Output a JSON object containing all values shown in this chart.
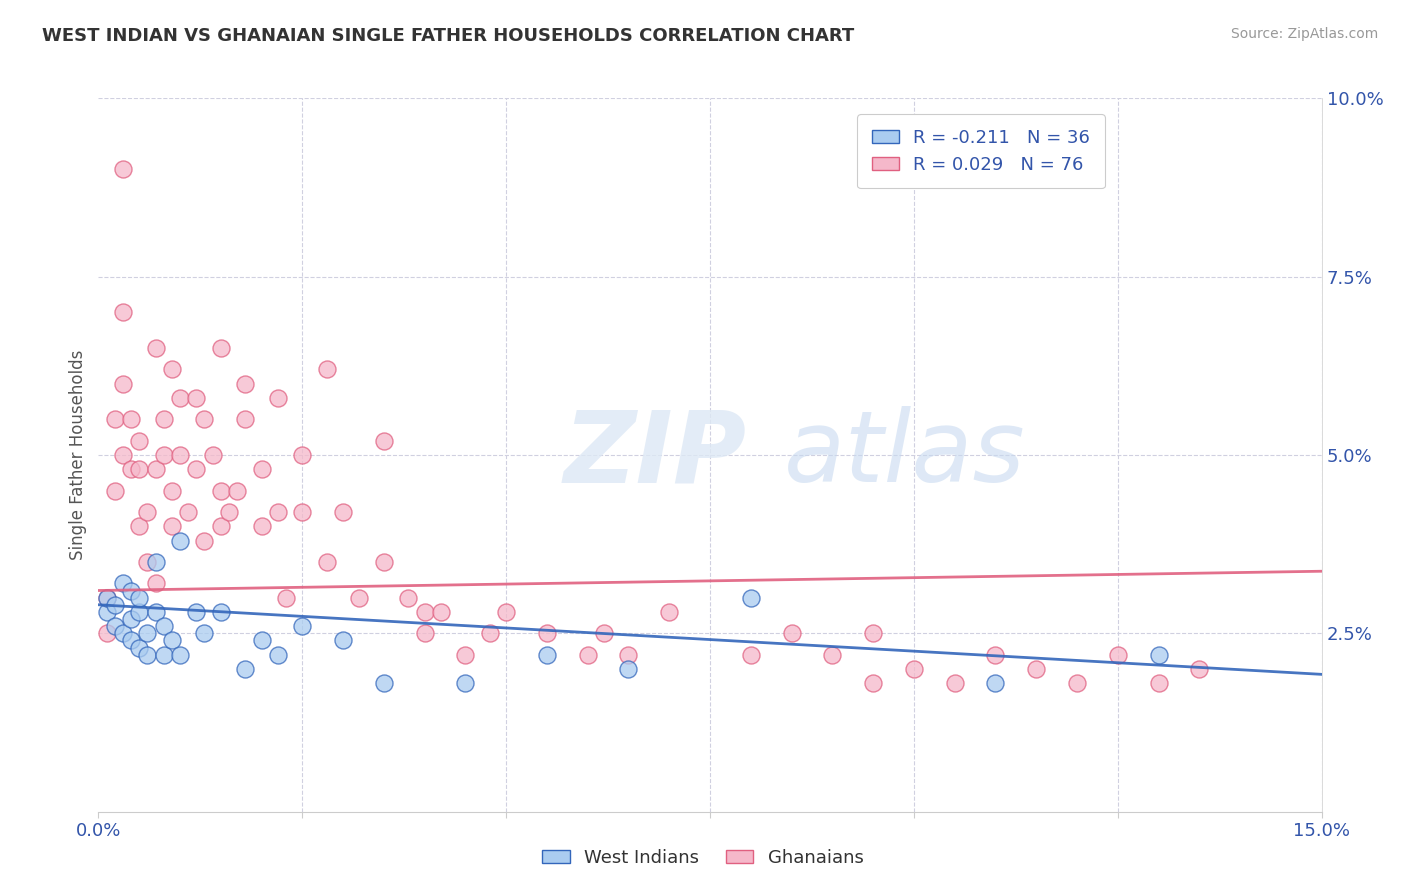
{
  "title": "WEST INDIAN VS GHANAIAN SINGLE FATHER HOUSEHOLDS CORRELATION CHART",
  "source": "Source: ZipAtlas.com",
  "ylabel": "Single Father Households",
  "legend_blue_label": "R = -0.211   N = 36",
  "legend_pink_label": "R = 0.029   N = 76",
  "blue_color": "#aaccf0",
  "pink_color": "#f5b8ca",
  "blue_line_color": "#3366BB",
  "pink_line_color": "#e06080",
  "background_color": "#ffffff",
  "grid_color": "#d0d0e0",
  "watermark_zip": "ZIP",
  "watermark_atlas": "atlas",
  "xlim": [
    0,
    0.15
  ],
  "ylim": [
    0,
    0.1
  ],
  "blue_intercept": 0.029,
  "blue_slope": -0.065,
  "pink_intercept": 0.031,
  "pink_slope": 0.018,
  "west_indians_x": [
    0.001,
    0.001,
    0.002,
    0.002,
    0.003,
    0.003,
    0.004,
    0.004,
    0.004,
    0.005,
    0.005,
    0.005,
    0.006,
    0.006,
    0.007,
    0.007,
    0.008,
    0.008,
    0.009,
    0.01,
    0.01,
    0.012,
    0.013,
    0.015,
    0.018,
    0.02,
    0.022,
    0.025,
    0.03,
    0.035,
    0.045,
    0.055,
    0.065,
    0.08,
    0.11,
    0.13
  ],
  "west_indians_y": [
    0.028,
    0.03,
    0.026,
    0.029,
    0.025,
    0.032,
    0.027,
    0.024,
    0.031,
    0.023,
    0.028,
    0.03,
    0.025,
    0.022,
    0.035,
    0.028,
    0.026,
    0.022,
    0.024,
    0.038,
    0.022,
    0.028,
    0.025,
    0.028,
    0.02,
    0.024,
    0.022,
    0.026,
    0.024,
    0.018,
    0.018,
    0.022,
    0.02,
    0.03,
    0.018,
    0.022
  ],
  "ghanaians_x": [
    0.001,
    0.001,
    0.002,
    0.002,
    0.003,
    0.003,
    0.003,
    0.004,
    0.004,
    0.005,
    0.005,
    0.005,
    0.006,
    0.006,
    0.007,
    0.007,
    0.008,
    0.008,
    0.009,
    0.009,
    0.01,
    0.01,
    0.011,
    0.012,
    0.013,
    0.013,
    0.014,
    0.015,
    0.015,
    0.016,
    0.017,
    0.018,
    0.02,
    0.02,
    0.022,
    0.023,
    0.025,
    0.025,
    0.028,
    0.03,
    0.032,
    0.035,
    0.038,
    0.04,
    0.04,
    0.042,
    0.045,
    0.048,
    0.05,
    0.055,
    0.06,
    0.062,
    0.065,
    0.07,
    0.08,
    0.085,
    0.09,
    0.095,
    0.1,
    0.105,
    0.11,
    0.115,
    0.12,
    0.125,
    0.13,
    0.135,
    0.003,
    0.007,
    0.009,
    0.012,
    0.015,
    0.018,
    0.022,
    0.028,
    0.035,
    0.095
  ],
  "ghanaians_y": [
    0.03,
    0.025,
    0.055,
    0.045,
    0.07,
    0.06,
    0.05,
    0.048,
    0.055,
    0.04,
    0.048,
    0.052,
    0.035,
    0.042,
    0.048,
    0.032,
    0.05,
    0.055,
    0.04,
    0.045,
    0.058,
    0.05,
    0.042,
    0.048,
    0.038,
    0.055,
    0.05,
    0.045,
    0.04,
    0.042,
    0.045,
    0.055,
    0.04,
    0.048,
    0.042,
    0.03,
    0.042,
    0.05,
    0.035,
    0.042,
    0.03,
    0.035,
    0.03,
    0.025,
    0.028,
    0.028,
    0.022,
    0.025,
    0.028,
    0.025,
    0.022,
    0.025,
    0.022,
    0.028,
    0.022,
    0.025,
    0.022,
    0.025,
    0.02,
    0.018,
    0.022,
    0.02,
    0.018,
    0.022,
    0.018,
    0.02,
    0.09,
    0.065,
    0.062,
    0.058,
    0.065,
    0.06,
    0.058,
    0.062,
    0.052,
    0.018
  ]
}
